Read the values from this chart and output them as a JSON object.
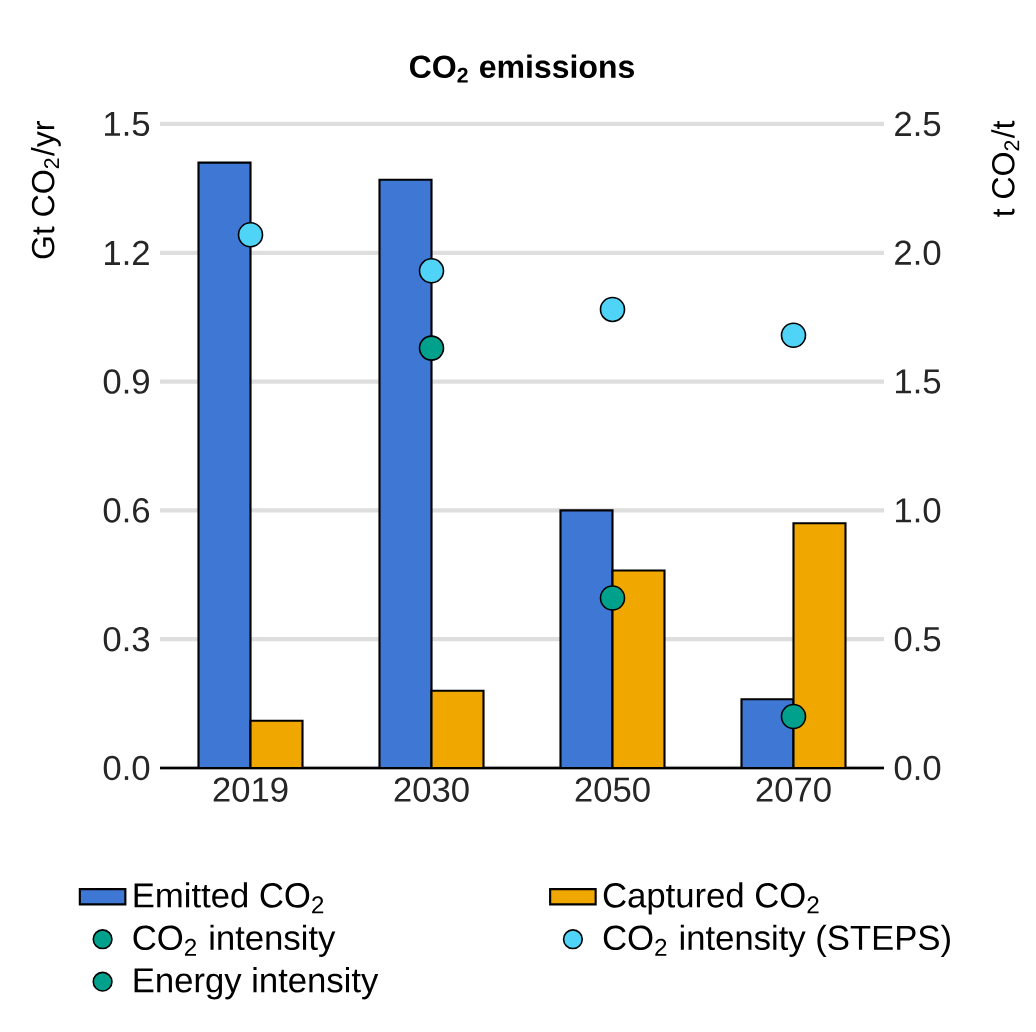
{
  "chart_data": {
    "type": "bar",
    "title": "**CO$_{2}$ emissions**",
    "ylabel": "Gt CO$_{2}$/yr",
    "y2label": "t CO$_{2}$/t",
    "categories": [
      "2019",
      "2030",
      "2050",
      "2070"
    ],
    "series": [
      {
        "name": "Emitted CO$_{2}$",
        "color": "#3f78d4",
        "values": [
          1.41,
          1.37,
          0.6,
          0.16
        ]
      },
      {
        "name": "Captured CO$_{2}$",
        "color": "#f0a800",
        "values": [
          0.11,
          0.18,
          0.46,
          0.57
        ]
      },
      {
        "name": "CO$_{2}$ intensity",
        "type": "scatter",
        "axis": "y2",
        "color": "#00a18c",
        "values": [
          null,
          1.63,
          0.66,
          0.2
        ]
      },
      {
        "name": "CO$_{2}$ intensity (STEPS)",
        "type": "scatter",
        "axis": "y2",
        "color": "#4fd3f7",
        "values": [
          2.07,
          1.93,
          1.78,
          1.68
        ]
      },
      {
        "name": "Energy intensity",
        "type": "scatter",
        "axis": "y2",
        "color": "#00a18c",
        "values": [
          null,
          null,
          null,
          null
        ]
      }
    ],
    "ylim": [
      0,
      1.5
    ],
    "yticks": [
      {
        "value": 0,
        "label": "0.0"
      },
      0.3,
      0.6,
      0.9,
      1.2,
      1.5
    ],
    "y2lim": [
      0,
      2.5
    ],
    "y2ticks": [
      {
        "value": 0,
        "label": "0.0"
      },
      0.5,
      {
        "value": 1,
        "label": "1.0"
      },
      1.5,
      {
        "value": 2,
        "label": "2.0"
      },
      2.5
    ],
    "grid": "y",
    "legend": "bottom",
    "marker": "circle"
  }
}
